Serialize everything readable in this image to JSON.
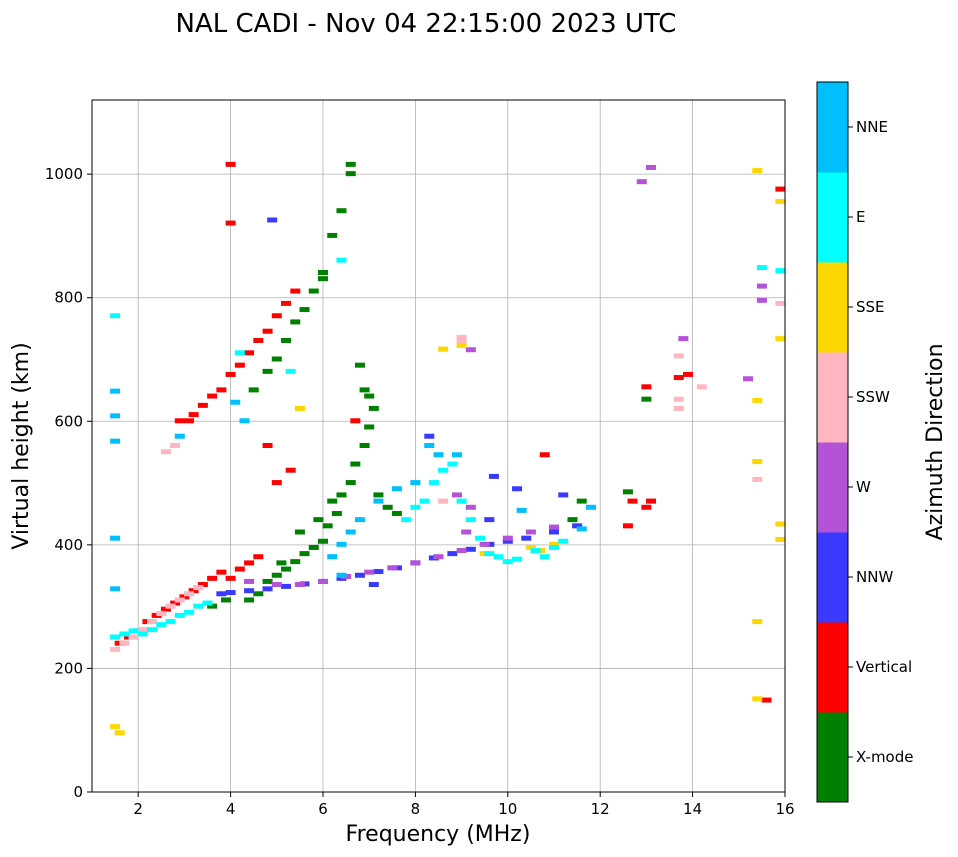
{
  "chart_data": {
    "type": "scatter",
    "title": "NAL CADI - Nov 04 22:15:00 2023 UTC",
    "xlabel": "Frequency (MHz)",
    "ylabel": "Virtual height (km)",
    "xlim": [
      1,
      16
    ],
    "ylim": [
      0,
      1120
    ],
    "xticks": [
      2,
      4,
      6,
      8,
      10,
      12,
      14,
      16
    ],
    "yticks": [
      0,
      200,
      400,
      600,
      800,
      1000
    ],
    "grid": true,
    "colorbar": {
      "label": "Azimuth Direction",
      "categories": [
        {
          "name": "X-mode",
          "color": "#008000"
        },
        {
          "name": "Vertical",
          "color": "#ff0000"
        },
        {
          "name": "NNW",
          "color": "#3a3aff"
        },
        {
          "name": "W",
          "color": "#b452d8"
        },
        {
          "name": "SSW",
          "color": "#ffb6c1"
        },
        {
          "name": "SSE",
          "color": "#ffd700"
        },
        {
          "name": "E",
          "color": "#00ffff"
        },
        {
          "name": "NNE",
          "color": "#00bfff"
        }
      ]
    },
    "series": [
      {
        "name": "X-mode",
        "points": [
          [
            4.4,
            310
          ],
          [
            4.6,
            320
          ],
          [
            4.8,
            340
          ],
          [
            5.0,
            350
          ],
          [
            5.2,
            360
          ],
          [
            5.4,
            372
          ],
          [
            5.6,
            385
          ],
          [
            5.8,
            395
          ],
          [
            6.0,
            405
          ],
          [
            6.1,
            430
          ],
          [
            6.3,
            450
          ],
          [
            6.4,
            480
          ],
          [
            6.6,
            500
          ],
          [
            6.7,
            530
          ],
          [
            6.9,
            560
          ],
          [
            7.0,
            590
          ],
          [
            7.1,
            620
          ],
          [
            7.2,
            480
          ],
          [
            7.4,
            460
          ],
          [
            7.6,
            450
          ],
          [
            6.6,
            1000
          ],
          [
            6.6,
            1015
          ],
          [
            6.4,
            940
          ],
          [
            6.2,
            900
          ],
          [
            6.0,
            840
          ],
          [
            5.8,
            810
          ],
          [
            5.6,
            780
          ],
          [
            5.4,
            760
          ],
          [
            5.2,
            730
          ],
          [
            5.0,
            700
          ],
          [
            4.8,
            680
          ],
          [
            6.8,
            690
          ],
          [
            6.9,
            650
          ],
          [
            7.0,
            640
          ],
          [
            12.6,
            485
          ],
          [
            11.6,
            470
          ],
          [
            11.4,
            440
          ],
          [
            13.0,
            635
          ],
          [
            5.9,
            440
          ],
          [
            6.2,
            470
          ],
          [
            6.0,
            830
          ],
          [
            4.5,
            650
          ],
          [
            5.5,
            420
          ],
          [
            5.1,
            370
          ],
          [
            3.9,
            310
          ],
          [
            3.6,
            300
          ]
        ]
      },
      {
        "name": "Vertical",
        "points": [
          [
            1.6,
            240
          ],
          [
            1.8,
            250
          ],
          [
            2.0,
            260
          ],
          [
            2.2,
            275
          ],
          [
            2.4,
            285
          ],
          [
            2.6,
            295
          ],
          [
            2.8,
            305
          ],
          [
            3.0,
            315
          ],
          [
            3.2,
            325
          ],
          [
            3.4,
            335
          ],
          [
            3.6,
            345
          ],
          [
            3.8,
            355
          ],
          [
            4.0,
            345
          ],
          [
            4.2,
            360
          ],
          [
            4.4,
            370
          ],
          [
            4.6,
            380
          ],
          [
            3.2,
            610
          ],
          [
            3.4,
            625
          ],
          [
            3.6,
            640
          ],
          [
            3.8,
            650
          ],
          [
            4.0,
            675
          ],
          [
            4.2,
            690
          ],
          [
            4.4,
            710
          ],
          [
            4.6,
            730
          ],
          [
            4.8,
            745
          ],
          [
            5.0,
            770
          ],
          [
            5.2,
            790
          ],
          [
            5.4,
            810
          ],
          [
            4.0,
            920
          ],
          [
            4.0,
            1015
          ],
          [
            4.8,
            560
          ],
          [
            5.0,
            500
          ],
          [
            5.3,
            520
          ],
          [
            6.7,
            600
          ],
          [
            10.8,
            545
          ],
          [
            12.7,
            470
          ],
          [
            13.0,
            460
          ],
          [
            13.1,
            470
          ],
          [
            12.6,
            430
          ],
          [
            13.0,
            655
          ],
          [
            13.7,
            670
          ],
          [
            13.9,
            675
          ],
          [
            15.9,
            975
          ],
          [
            15.6,
            148
          ],
          [
            2.9,
            600
          ],
          [
            3.1,
            600
          ]
        ]
      },
      {
        "name": "NNW",
        "points": [
          [
            3.8,
            320
          ],
          [
            4.0,
            322
          ],
          [
            4.4,
            325
          ],
          [
            4.8,
            328
          ],
          [
            5.2,
            332
          ],
          [
            5.6,
            336
          ],
          [
            6.0,
            340
          ],
          [
            6.4,
            345
          ],
          [
            6.8,
            350
          ],
          [
            7.2,
            356
          ],
          [
            7.6,
            362
          ],
          [
            8.0,
            370
          ],
          [
            8.4,
            378
          ],
          [
            8.8,
            385
          ],
          [
            9.2,
            392
          ],
          [
            9.6,
            400
          ],
          [
            10.0,
            405
          ],
          [
            10.4,
            410
          ],
          [
            11.0,
            420
          ],
          [
            11.5,
            430
          ],
          [
            9.6,
            440
          ],
          [
            9.7,
            510
          ],
          [
            8.3,
            575
          ],
          [
            7.1,
            335
          ],
          [
            4.9,
            925
          ],
          [
            10.2,
            490
          ],
          [
            11.2,
            480
          ]
        ]
      },
      {
        "name": "W",
        "points": [
          [
            4.4,
            340
          ],
          [
            5.0,
            335
          ],
          [
            5.5,
            335
          ],
          [
            6.0,
            340
          ],
          [
            6.5,
            348
          ],
          [
            7.0,
            355
          ],
          [
            7.5,
            362
          ],
          [
            8.0,
            370
          ],
          [
            8.5,
            380
          ],
          [
            9.0,
            390
          ],
          [
            9.5,
            400
          ],
          [
            10.0,
            410
          ],
          [
            10.5,
            420
          ],
          [
            11.0,
            428
          ],
          [
            8.9,
            480
          ],
          [
            9.1,
            420
          ],
          [
            13.1,
            1010
          ],
          [
            12.9,
            987
          ],
          [
            13.8,
            733
          ],
          [
            15.2,
            668
          ],
          [
            15.5,
            818
          ],
          [
            15.5,
            795
          ],
          [
            9.2,
            460
          ],
          [
            9.2,
            715
          ]
        ]
      },
      {
        "name": "SSW",
        "points": [
          [
            1.5,
            230
          ],
          [
            1.7,
            240
          ],
          [
            1.9,
            250
          ],
          [
            2.1,
            262
          ],
          [
            2.3,
            275
          ],
          [
            2.5,
            288
          ],
          [
            2.7,
            300
          ],
          [
            2.9,
            310
          ],
          [
            3.1,
            320
          ],
          [
            3.3,
            330
          ],
          [
            2.6,
            550
          ],
          [
            2.8,
            560
          ],
          [
            13.7,
            705
          ],
          [
            14.2,
            655
          ],
          [
            15.4,
            505
          ],
          [
            15.9,
            790
          ],
          [
            9.0,
            730
          ],
          [
            9.0,
            735
          ],
          [
            8.6,
            470
          ],
          [
            13.7,
            635
          ],
          [
            13.7,
            620
          ]
        ]
      },
      {
        "name": "SSE",
        "points": [
          [
            1.5,
            105
          ],
          [
            1.6,
            95
          ],
          [
            8.6,
            716
          ],
          [
            9.0,
            722
          ],
          [
            10.5,
            395
          ],
          [
            10.7,
            390
          ],
          [
            11.0,
            400
          ],
          [
            9.5,
            385
          ],
          [
            15.4,
            1005
          ],
          [
            15.9,
            955
          ],
          [
            15.9,
            733
          ],
          [
            15.4,
            633
          ],
          [
            15.4,
            534
          ],
          [
            15.9,
            433
          ],
          [
            15.9,
            408
          ],
          [
            15.4,
            275
          ],
          [
            15.4,
            150
          ],
          [
            5.5,
            620
          ]
        ]
      },
      {
        "name": "E",
        "points": [
          [
            1.5,
            250
          ],
          [
            1.7,
            255
          ],
          [
            1.9,
            260
          ],
          [
            2.1,
            255
          ],
          [
            2.3,
            262
          ],
          [
            2.5,
            270
          ],
          [
            2.7,
            275
          ],
          [
            2.9,
            285
          ],
          [
            3.1,
            290
          ],
          [
            3.3,
            300
          ],
          [
            3.5,
            305
          ],
          [
            7.8,
            440
          ],
          [
            8.0,
            460
          ],
          [
            8.2,
            470
          ],
          [
            8.4,
            500
          ],
          [
            8.6,
            520
          ],
          [
            8.8,
            530
          ],
          [
            9.0,
            470
          ],
          [
            9.2,
            440
          ],
          [
            9.4,
            410
          ],
          [
            9.6,
            385
          ],
          [
            9.8,
            380
          ],
          [
            10.0,
            372
          ],
          [
            10.2,
            376
          ],
          [
            10.6,
            390
          ],
          [
            10.8,
            380
          ],
          [
            11.0,
            395
          ],
          [
            11.2,
            405
          ],
          [
            15.5,
            848
          ],
          [
            15.9,
            843
          ],
          [
            6.4,
            860
          ],
          [
            5.3,
            680
          ],
          [
            4.2,
            710
          ],
          [
            1.5,
            770
          ]
        ]
      },
      {
        "name": "NNE",
        "points": [
          [
            1.5,
            648
          ],
          [
            1.5,
            608
          ],
          [
            1.5,
            567
          ],
          [
            1.5,
            410
          ],
          [
            1.5,
            328
          ],
          [
            8.3,
            560
          ],
          [
            8.5,
            545
          ],
          [
            8.0,
            500
          ],
          [
            7.6,
            490
          ],
          [
            7.2,
            470
          ],
          [
            6.8,
            440
          ],
          [
            6.6,
            420
          ],
          [
            6.4,
            400
          ],
          [
            6.2,
            380
          ],
          [
            6.4,
            350
          ],
          [
            4.1,
            630
          ],
          [
            4.3,
            600
          ],
          [
            2.9,
            575
          ],
          [
            8.9,
            545
          ],
          [
            10.3,
            455
          ],
          [
            11.8,
            460
          ],
          [
            11.6,
            425
          ]
        ]
      }
    ]
  }
}
